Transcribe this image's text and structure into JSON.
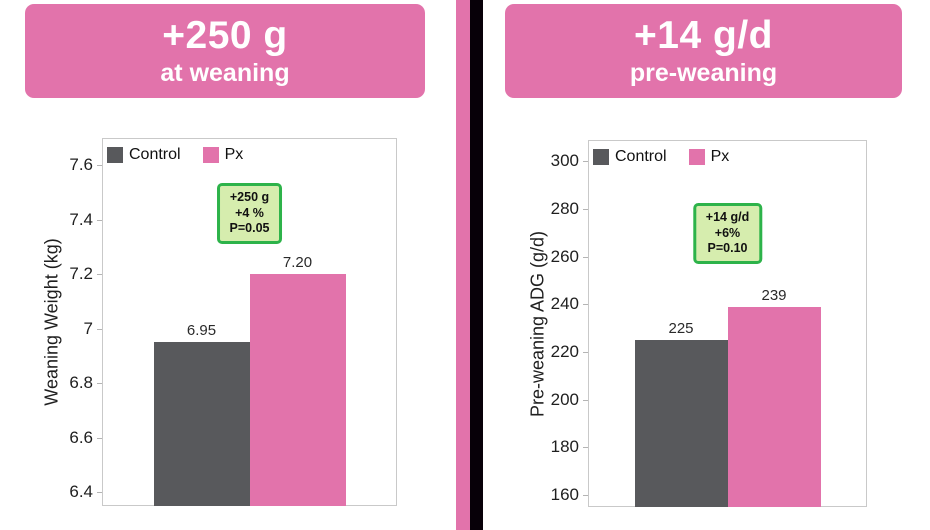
{
  "colors": {
    "pink": "#e273ab",
    "dark_gray": "#58595c",
    "banner_background": "#e273ab",
    "banner_text": "#ffffff",
    "divider_pink": "#e273ab",
    "divider_black": "#070008",
    "annotation_border": "#2db34a",
    "annotation_fill": "#d6edae",
    "plot_border": "#c9c9c9",
    "text": "#1f1f1f"
  },
  "chart_data": [
    {
      "type": "bar",
      "banner_headline": "+250 g",
      "banner_subline": "at weaning",
      "ylabel": "Weaning Weight (kg)",
      "categories": [
        "Control",
        "Px"
      ],
      "values": [
        6.95,
        7.2
      ],
      "bar_labels": [
        "6.95",
        "7.20"
      ],
      "bar_colors": [
        "#58595c",
        "#e273ab"
      ],
      "legend": [
        {
          "label": "Control",
          "color": "#58595c"
        },
        {
          "label": "Px",
          "color": "#e273ab"
        }
      ],
      "legend_position": "top-left",
      "yticks": [
        6.4,
        6.6,
        6.8,
        7,
        7.2,
        7.4,
        7.6
      ],
      "ytick_labels": [
        "6.4",
        "6.6",
        "6.8",
        "7",
        "7.2",
        "7.4",
        "7.6"
      ],
      "ylim": [
        6.35,
        7.7
      ],
      "grid": false,
      "annotation": {
        "lines": [
          "+250 g",
          "+4 %",
          "P=0.05"
        ]
      }
    },
    {
      "type": "bar",
      "banner_headline": "+14 g/d",
      "banner_subline": "pre-weaning",
      "ylabel": "Pre-weaning ADG (g/d)",
      "categories": [
        "Control",
        "Px"
      ],
      "values": [
        225,
        239
      ],
      "bar_labels": [
        "225",
        "239"
      ],
      "bar_colors": [
        "#58595c",
        "#e273ab"
      ],
      "legend": [
        {
          "label": "Control",
          "color": "#58595c"
        },
        {
          "label": "Px",
          "color": "#e273ab"
        }
      ],
      "legend_position": "top-left",
      "yticks": [
        160,
        180,
        200,
        220,
        240,
        260,
        280,
        300
      ],
      "ytick_labels": [
        "160",
        "180",
        "200",
        "220",
        "240",
        "260",
        "280",
        "300"
      ],
      "ylim": [
        155,
        309
      ],
      "grid": false,
      "annotation": {
        "lines": [
          "+14 g/d",
          "+6%",
          "P=0.10"
        ]
      }
    }
  ]
}
